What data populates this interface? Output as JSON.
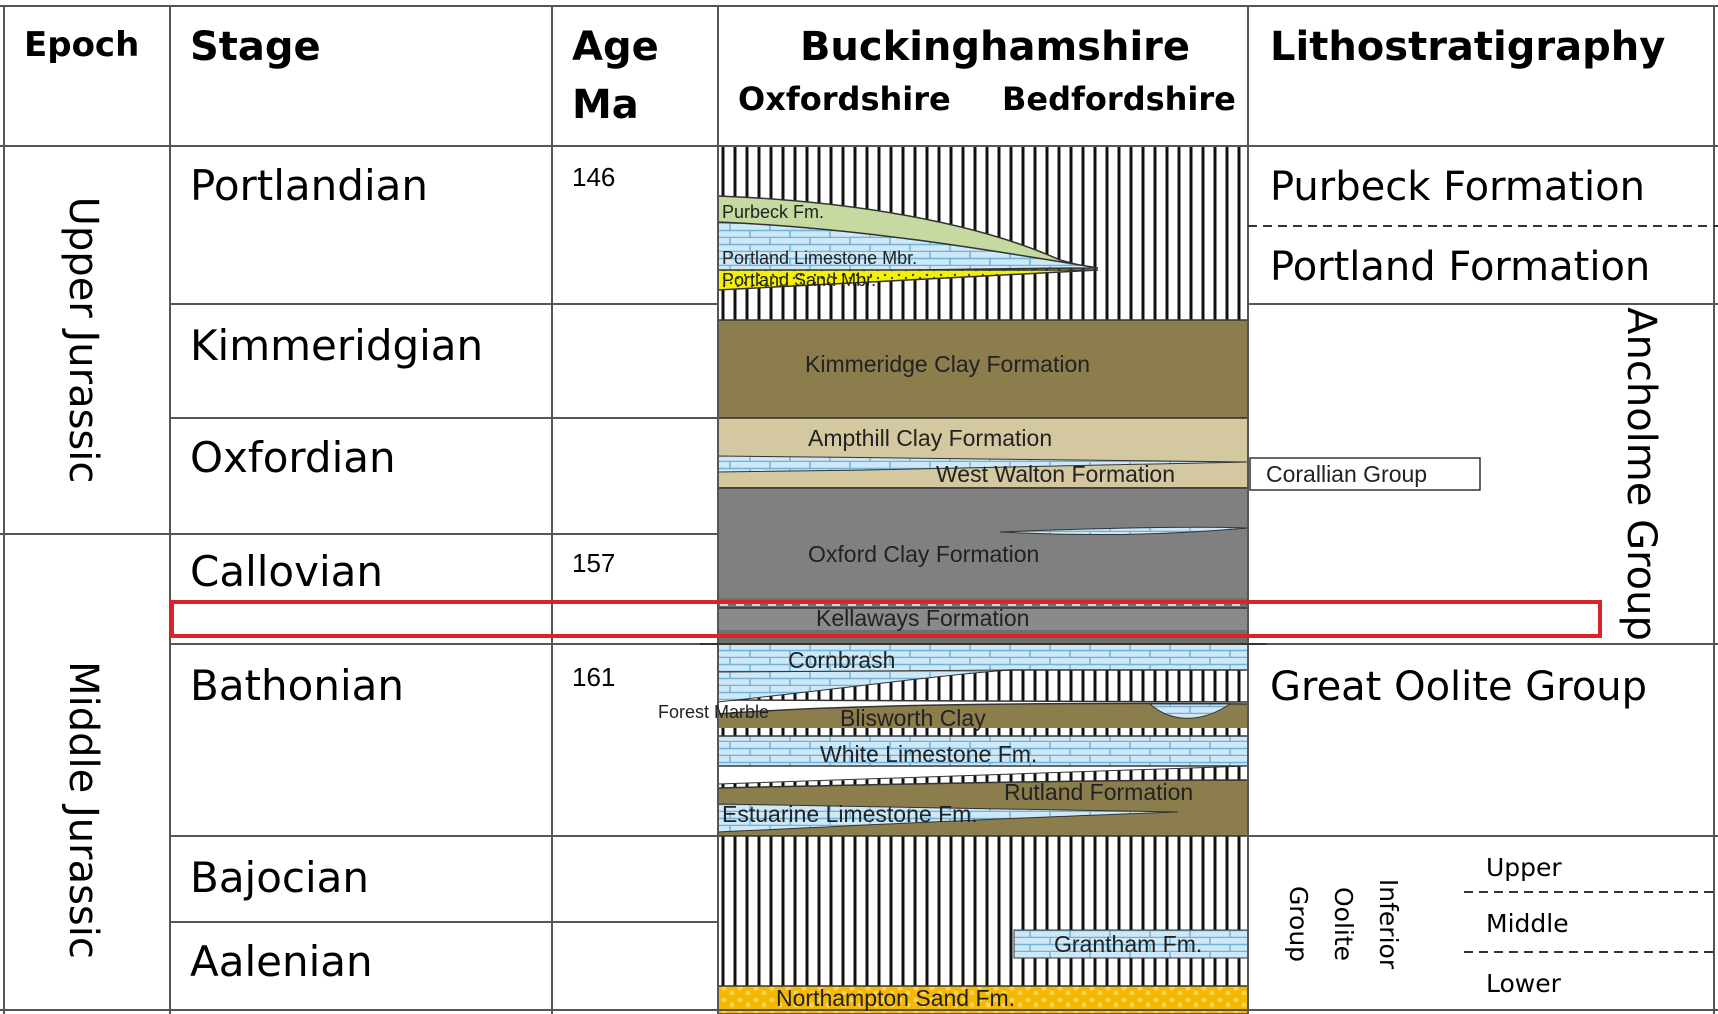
{
  "headers": {
    "epoch": "Epoch",
    "stage": "Stage",
    "age_line1": "Age",
    "age_line2": "Ma",
    "region_top": "Buckinghamshire",
    "region_left": "Oxfordshire",
    "region_right": "Bedfordshire",
    "litho": "Lithostratigraphy"
  },
  "epochs": {
    "upper": "Upper Jurassic",
    "middle": "Middle Jurassic"
  },
  "stages": {
    "portlandian": "Portlandian",
    "kimmeridgian": "Kimmeridgian",
    "oxfordian": "Oxfordian",
    "callovian": "Callovian",
    "bathonian": "Bathonian",
    "bajocian": "Bajocian",
    "aalenian": "Aalenian"
  },
  "ages": {
    "a146": "146",
    "a157": "157",
    "a161": "161"
  },
  "formations": {
    "purbeck": "Purbeck Fm.",
    "portland_limestone": "Portland Limestone Mbr.",
    "portland_sand": "Portland Sand Mbr.",
    "kimmeridge_clay": "Kimmeridge Clay Formation",
    "ampthill_clay": "Ampthill Clay Formation",
    "west_walton": "West Walton Formation",
    "oxford_clay": "Oxford Clay Formation",
    "kellaways": "Kellaways Formation",
    "cornbrash": "Cornbrash",
    "forest_marble": "Forest Marble",
    "blisworth_clay": "Blisworth Clay",
    "white_limestone": "White Limestone Fm.",
    "rutland": "Rutland Formation",
    "estuarine_limestone": "Estuarine Limestone Fm.",
    "grantham": "Grantham Fm.",
    "northampton_sand": "Northampton Sand Fm."
  },
  "lithostratigraphy": {
    "purbeck_formation": "Purbeck Formation",
    "portland_formation": "Portland Formation",
    "corallian_group": "Corallian Group",
    "ancholme_group": "Ancholme Group",
    "great_oolite_group": "Great Oolite Group",
    "inferior_line1": "Inferior",
    "inferior_line2": "Oolite",
    "inferior_line3": "Group",
    "upper": "Upper",
    "middle": "Middle",
    "lower": "Lower"
  },
  "colors": {
    "purbeck": "#c5d9a0",
    "limestone": "#cfe8f7",
    "brick_line": "#6fb3d9",
    "sand_yellow": "#f3f000",
    "clay_olive": "#8c7e4c",
    "ampthill": "#d4c8a0",
    "oxford_clay": "#808080",
    "northampton": "#f5b800",
    "highlight": "#d9242b"
  }
}
